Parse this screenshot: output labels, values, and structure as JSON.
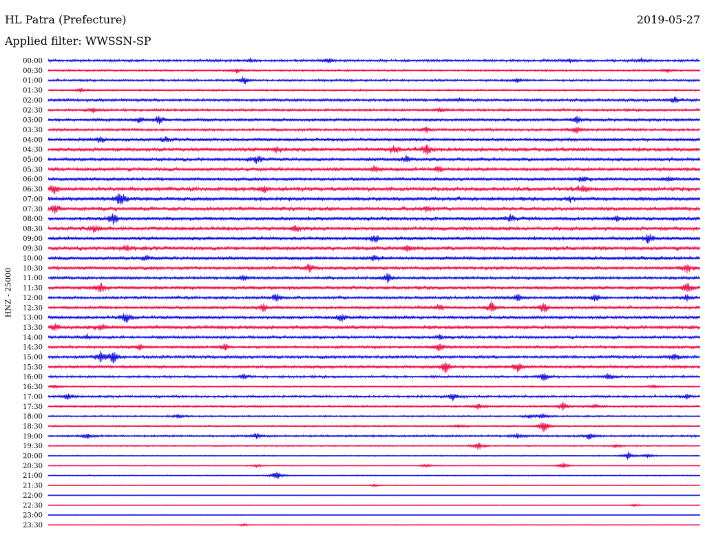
{
  "header": {
    "station": "HL Patra (Prefecture)",
    "date": "2019-05-27",
    "filter": "Applied filter: WWSSN-SP"
  },
  "colors": {
    "blue": "#1010e0",
    "red": "#f0104a"
  },
  "chart_data": {
    "type": "line",
    "title": "HL Patra (Prefecture)",
    "subtitle": "Applied filter: WWSSN-SP",
    "ylabel": "HNZ - 25000",
    "series_colors": [
      "#1010e0",
      "#f0104a"
    ],
    "rows": [
      {
        "time": "00:00",
        "amp": 2.2,
        "events": [
          {
            "x": 0.43,
            "a": 4
          },
          {
            "x": 0.31,
            "a": 3
          },
          {
            "x": 0.8,
            "a": 3
          },
          {
            "x": 0.91,
            "a": 3
          }
        ]
      },
      {
        "time": "00:30",
        "amp": 1.6,
        "events": [
          {
            "x": 0.29,
            "a": 4
          },
          {
            "x": 0.95,
            "a": 3
          }
        ]
      },
      {
        "time": "01:00",
        "amp": 2.0,
        "events": [
          {
            "x": 0.3,
            "a": 6
          },
          {
            "x": 0.72,
            "a": 3
          }
        ]
      },
      {
        "time": "01:30",
        "amp": 1.6,
        "events": [
          {
            "x": 0.05,
            "a": 3
          }
        ]
      },
      {
        "time": "02:00",
        "amp": 2.6,
        "events": [
          {
            "x": 0.63,
            "a": 3
          },
          {
            "x": 0.96,
            "a": 4
          }
        ]
      },
      {
        "time": "02:30",
        "amp": 2.2,
        "events": [
          {
            "x": 0.6,
            "a": 4
          },
          {
            "x": 0.07,
            "a": 3
          }
        ]
      },
      {
        "time": "03:00",
        "amp": 2.8,
        "events": [
          {
            "x": 0.14,
            "a": 5
          },
          {
            "x": 0.17,
            "a": 6
          },
          {
            "x": 0.81,
            "a": 6
          }
        ]
      },
      {
        "time": "03:30",
        "amp": 2.4,
        "events": [
          {
            "x": 0.58,
            "a": 4
          },
          {
            "x": 0.81,
            "a": 5
          }
        ]
      },
      {
        "time": "04:00",
        "amp": 3.0,
        "events": [
          {
            "x": 0.08,
            "a": 4
          },
          {
            "x": 0.18,
            "a": 4
          }
        ]
      },
      {
        "time": "04:30",
        "amp": 3.6,
        "events": [
          {
            "x": 0.53,
            "a": 6
          },
          {
            "x": 0.58,
            "a": 7
          },
          {
            "x": 0.35,
            "a": 4
          }
        ]
      },
      {
        "time": "05:00",
        "amp": 3.2,
        "events": [
          {
            "x": 0.32,
            "a": 5
          },
          {
            "x": 0.55,
            "a": 5
          }
        ]
      },
      {
        "time": "05:30",
        "amp": 3.4,
        "events": [
          {
            "x": 0.5,
            "a": 5
          },
          {
            "x": 0.6,
            "a": 5
          }
        ]
      },
      {
        "time": "06:00",
        "amp": 3.0,
        "events": [
          {
            "x": 0.82,
            "a": 5
          },
          {
            "x": 0.95,
            "a": 4
          }
        ]
      },
      {
        "time": "06:30",
        "amp": 4.0,
        "events": [
          {
            "x": 0.01,
            "a": 6
          },
          {
            "x": 0.33,
            "a": 5
          },
          {
            "x": 0.82,
            "a": 4
          }
        ]
      },
      {
        "time": "07:00",
        "amp": 3.6,
        "events": [
          {
            "x": 0.11,
            "a": 11
          },
          {
            "x": 0.8,
            "a": 4
          }
        ]
      },
      {
        "time": "07:30",
        "amp": 3.6,
        "events": [
          {
            "x": 0.01,
            "a": 6
          },
          {
            "x": 0.58,
            "a": 4
          }
        ]
      },
      {
        "time": "08:00",
        "amp": 3.4,
        "events": [
          {
            "x": 0.1,
            "a": 8
          },
          {
            "x": 0.71,
            "a": 5
          },
          {
            "x": 0.87,
            "a": 4
          }
        ]
      },
      {
        "time": "08:30",
        "amp": 3.6,
        "events": [
          {
            "x": 0.07,
            "a": 5
          },
          {
            "x": 0.38,
            "a": 4
          }
        ]
      },
      {
        "time": "09:00",
        "amp": 3.2,
        "events": [
          {
            "x": 0.5,
            "a": 6
          },
          {
            "x": 0.92,
            "a": 7
          }
        ]
      },
      {
        "time": "09:30",
        "amp": 3.6,
        "events": [
          {
            "x": 0.12,
            "a": 4
          },
          {
            "x": 0.55,
            "a": 4
          }
        ]
      },
      {
        "time": "10:00",
        "amp": 3.2,
        "events": [
          {
            "x": 0.15,
            "a": 4
          },
          {
            "x": 0.5,
            "a": 4
          }
        ]
      },
      {
        "time": "10:30",
        "amp": 3.2,
        "events": [
          {
            "x": 0.4,
            "a": 6
          },
          {
            "x": 0.98,
            "a": 7
          }
        ]
      },
      {
        "time": "11:00",
        "amp": 2.6,
        "events": [
          {
            "x": 0.52,
            "a": 8
          },
          {
            "x": 0.3,
            "a": 4
          }
        ]
      },
      {
        "time": "11:30",
        "amp": 3.2,
        "events": [
          {
            "x": 0.08,
            "a": 7
          },
          {
            "x": 0.98,
            "a": 7
          }
        ]
      },
      {
        "time": "12:00",
        "amp": 2.6,
        "events": [
          {
            "x": 0.35,
            "a": 7
          },
          {
            "x": 0.72,
            "a": 5
          },
          {
            "x": 0.84,
            "a": 6
          },
          {
            "x": 0.98,
            "a": 5
          }
        ]
      },
      {
        "time": "12:30",
        "amp": 2.6,
        "events": [
          {
            "x": 0.6,
            "a": 6
          },
          {
            "x": 0.68,
            "a": 9
          },
          {
            "x": 0.76,
            "a": 8
          },
          {
            "x": 0.33,
            "a": 5
          }
        ]
      },
      {
        "time": "13:00",
        "amp": 3.0,
        "events": [
          {
            "x": 0.12,
            "a": 8
          },
          {
            "x": 0.45,
            "a": 5
          }
        ]
      },
      {
        "time": "13:30",
        "amp": 3.4,
        "events": [
          {
            "x": 0.01,
            "a": 5
          },
          {
            "x": 0.08,
            "a": 4
          }
        ]
      },
      {
        "time": "14:00",
        "amp": 2.6,
        "events": [
          {
            "x": 0.06,
            "a": 4
          },
          {
            "x": 0.6,
            "a": 4
          }
        ]
      },
      {
        "time": "14:30",
        "amp": 2.4,
        "events": [
          {
            "x": 0.27,
            "a": 6
          },
          {
            "x": 0.6,
            "a": 7
          },
          {
            "x": 0.14,
            "a": 4
          }
        ]
      },
      {
        "time": "15:00",
        "amp": 2.8,
        "events": [
          {
            "x": 0.08,
            "a": 8
          },
          {
            "x": 0.1,
            "a": 10
          },
          {
            "x": 0.96,
            "a": 5
          }
        ]
      },
      {
        "time": "15:30",
        "amp": 2.6,
        "events": [
          {
            "x": 0.61,
            "a": 10
          },
          {
            "x": 0.72,
            "a": 7
          }
        ]
      },
      {
        "time": "16:00",
        "amp": 2.0,
        "events": [
          {
            "x": 0.3,
            "a": 4
          },
          {
            "x": 0.76,
            "a": 6
          },
          {
            "x": 0.86,
            "a": 6
          }
        ]
      },
      {
        "time": "16:30",
        "amp": 1.4,
        "events": [
          {
            "x": 0.01,
            "a": 4
          },
          {
            "x": 0.93,
            "a": 3
          }
        ]
      },
      {
        "time": "17:00",
        "amp": 2.0,
        "events": [
          {
            "x": 0.03,
            "a": 5
          },
          {
            "x": 0.62,
            "a": 6
          },
          {
            "x": 0.98,
            "a": 4
          }
        ]
      },
      {
        "time": "17:30",
        "amp": 1.8,
        "events": [
          {
            "x": 0.66,
            "a": 5
          },
          {
            "x": 0.79,
            "a": 7
          },
          {
            "x": 0.84,
            "a": 3
          }
        ]
      },
      {
        "time": "18:00",
        "amp": 1.4,
        "events": [
          {
            "x": 0.2,
            "a": 4
          },
          {
            "x": 0.74,
            "a": 4
          },
          {
            "x": 0.76,
            "a": 5
          }
        ]
      },
      {
        "time": "18:30",
        "amp": 1.4,
        "events": [
          {
            "x": 0.76,
            "a": 10
          },
          {
            "x": 0.63,
            "a": 3
          }
        ]
      },
      {
        "time": "19:00",
        "amp": 1.8,
        "events": [
          {
            "x": 0.32,
            "a": 5
          },
          {
            "x": 0.72,
            "a": 4
          },
          {
            "x": 0.83,
            "a": 5
          },
          {
            "x": 0.06,
            "a": 4
          }
        ]
      },
      {
        "time": "19:30",
        "amp": 1.2,
        "events": [
          {
            "x": 0.66,
            "a": 7
          },
          {
            "x": 0.87,
            "a": 3
          }
        ]
      },
      {
        "time": "20:00",
        "amp": 1.0,
        "events": [
          {
            "x": 0.89,
            "a": 6
          },
          {
            "x": 0.92,
            "a": 4
          }
        ]
      },
      {
        "time": "20:30",
        "amp": 0.8,
        "events": [
          {
            "x": 0.32,
            "a": 3
          },
          {
            "x": 0.58,
            "a": 3
          },
          {
            "x": 0.79,
            "a": 5
          }
        ]
      },
      {
        "time": "21:00",
        "amp": 1.0,
        "events": [
          {
            "x": 0.35,
            "a": 8
          }
        ]
      },
      {
        "time": "21:30",
        "amp": 0.7,
        "events": [
          {
            "x": 0.5,
            "a": 2
          }
        ]
      },
      {
        "time": "22:00",
        "amp": 0.6,
        "events": []
      },
      {
        "time": "22:30",
        "amp": 0.6,
        "events": [
          {
            "x": 0.9,
            "a": 2
          }
        ]
      },
      {
        "time": "23:00",
        "amp": 0.6,
        "events": []
      },
      {
        "time": "23:30",
        "amp": 0.6,
        "events": [
          {
            "x": 0.3,
            "a": 2
          }
        ]
      }
    ]
  }
}
